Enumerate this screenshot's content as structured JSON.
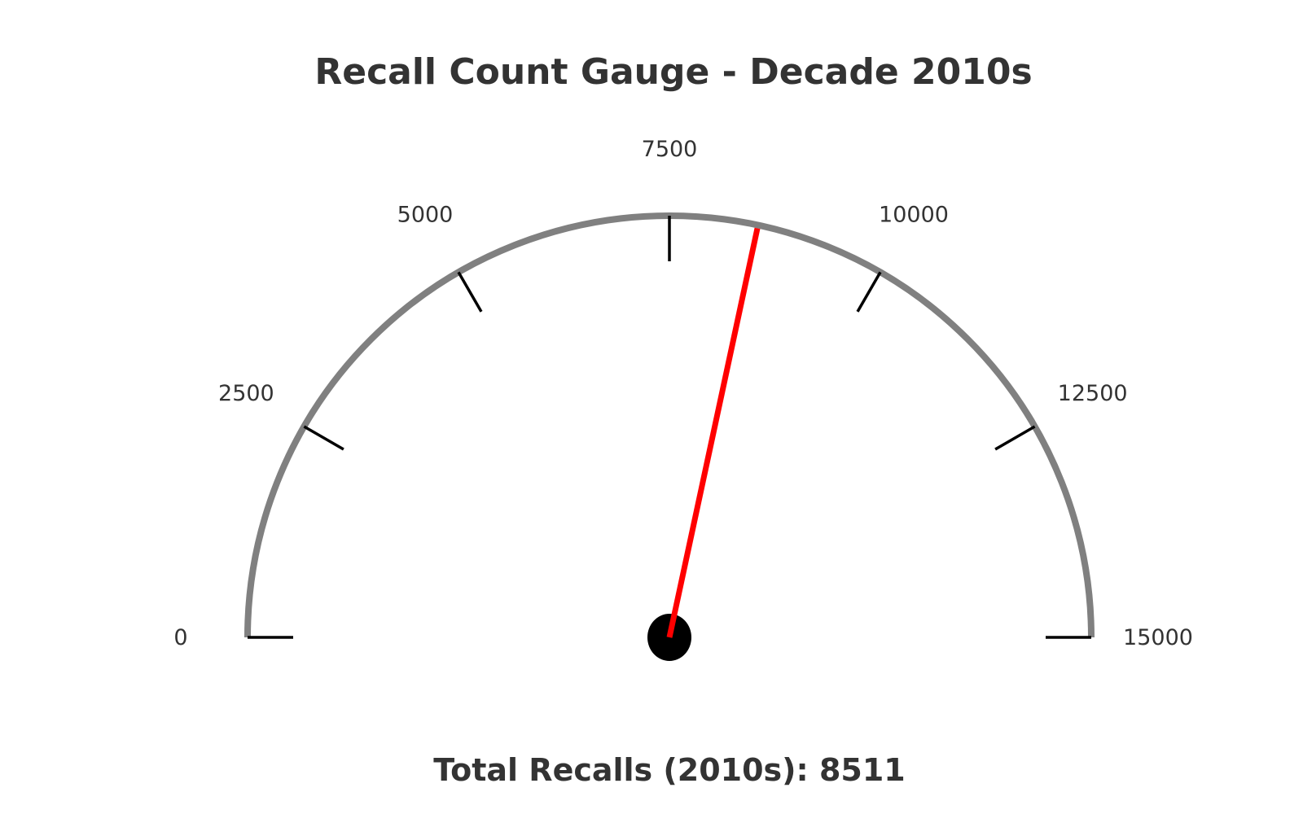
{
  "chart_data": {
    "type": "gauge",
    "title": "Recall Count Gauge - Decade 2010s",
    "summary": "Total Recalls (2010s): 8511",
    "value": 8511,
    "min": 0,
    "max": 15000,
    "ticks": [
      0,
      2500,
      5000,
      7500,
      10000,
      12500,
      15000
    ],
    "tick_labels": [
      "0",
      "2500",
      "5000",
      "7500",
      "10000",
      "12500",
      "15000"
    ],
    "colors": {
      "arc": "#808080",
      "needle": "#ff0000",
      "ticks": "#000000",
      "hub": "#000000",
      "text": "#333333"
    }
  }
}
